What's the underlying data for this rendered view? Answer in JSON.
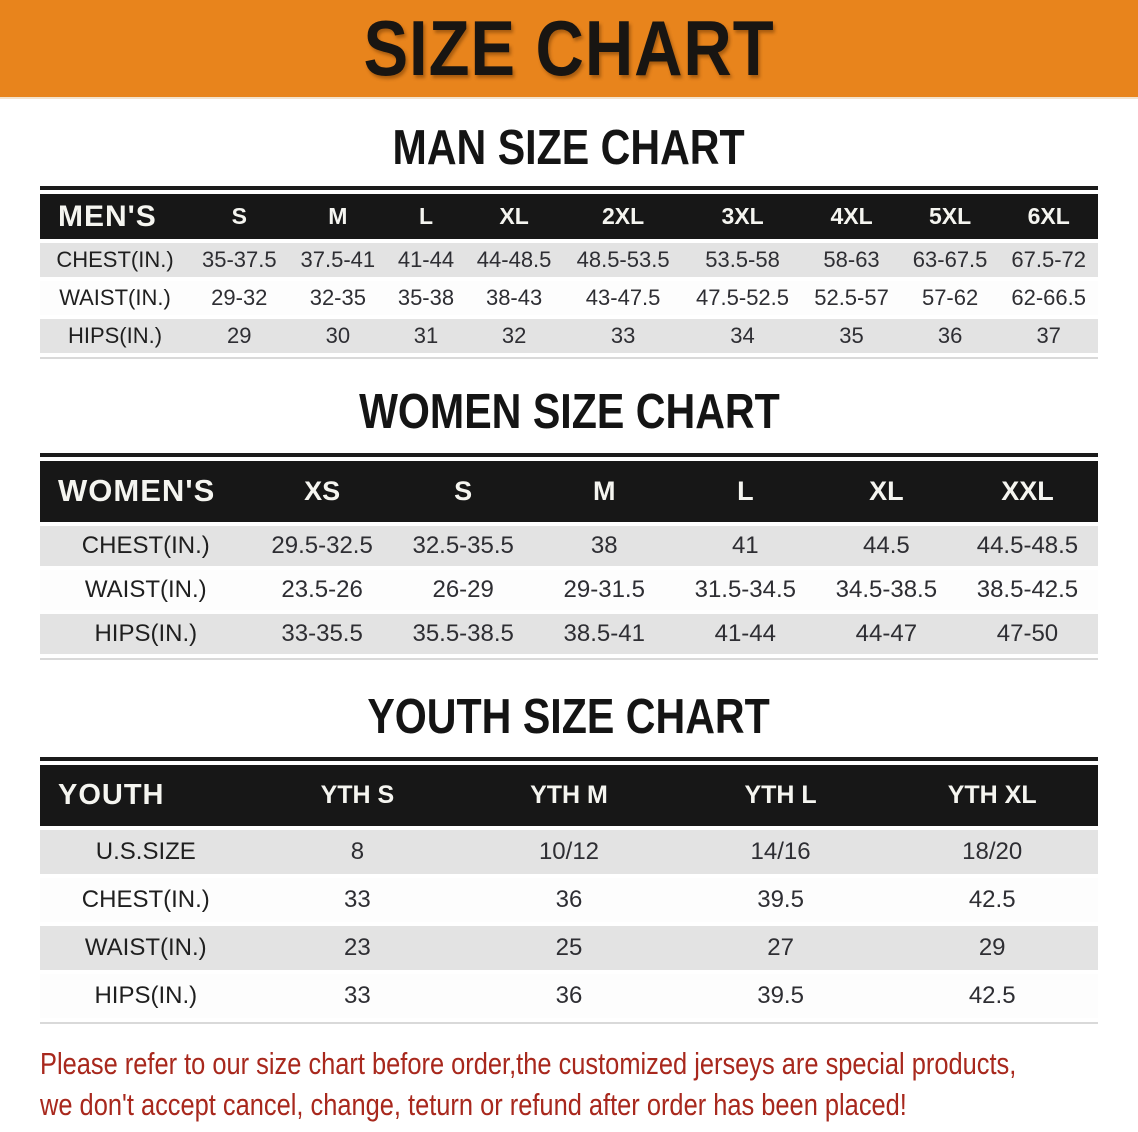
{
  "banner": {
    "title": "SIZE CHART",
    "bg_color": "#e8841c",
    "text_color": "#181512"
  },
  "sections": [
    {
      "heading": "MAN SIZE CHART",
      "table": {
        "header_label": "MEN'S",
        "columns": [
          "S",
          "M",
          "L",
          "XL",
          "2XL",
          "3XL",
          "4XL",
          "5XL",
          "6XL"
        ],
        "rows": [
          {
            "label": "CHEST(IN.)",
            "values": [
              "35-37.5",
              "37.5-41",
              "41-44",
              "44-48.5",
              "48.5-53.5",
              "53.5-58",
              "58-63",
              "63-67.5",
              "67.5-72"
            ]
          },
          {
            "label": "WAIST(IN.)",
            "values": [
              "29-32",
              "32-35",
              "35-38",
              "38-43",
              "43-47.5",
              "47.5-52.5",
              "52.5-57",
              "57-62",
              "62-66.5"
            ]
          },
          {
            "label": "HIPS(IN.)",
            "values": [
              "29",
              "30",
              "31",
              "32",
              "33",
              "34",
              "35",
              "36",
              "37"
            ]
          }
        ]
      }
    },
    {
      "heading": "WOMEN SIZE CHART",
      "table": {
        "header_label": "WOMEN'S",
        "columns": [
          "XS",
          "S",
          "M",
          "L",
          "XL",
          "XXL"
        ],
        "rows": [
          {
            "label": "CHEST(IN.)",
            "values": [
              "29.5-32.5",
              "32.5-35.5",
              "38",
              "41",
              "44.5",
              "44.5-48.5"
            ]
          },
          {
            "label": "WAIST(IN.)",
            "values": [
              "23.5-26",
              "26-29",
              "29-31.5",
              "31.5-34.5",
              "34.5-38.5",
              "38.5-42.5"
            ]
          },
          {
            "label": "HIPS(IN.)",
            "values": [
              "33-35.5",
              "35.5-38.5",
              "38.5-41",
              "41-44",
              "44-47",
              "47-50"
            ]
          }
        ]
      }
    },
    {
      "heading": "YOUTH SIZE CHART",
      "table": {
        "header_label": "YOUTH",
        "columns": [
          "YTH S",
          "YTH M",
          "YTH L",
          "YTH XL"
        ],
        "rows": [
          {
            "label": "U.S.SIZE",
            "values": [
              "8",
              "10/12",
              "14/16",
              "18/20"
            ]
          },
          {
            "label": "CHEST(IN.)",
            "values": [
              "33",
              "36",
              "39.5",
              "42.5"
            ]
          },
          {
            "label": "WAIST(IN.)",
            "values": [
              "23",
              "25",
              "27",
              "29"
            ]
          },
          {
            "label": "HIPS(IN.)",
            "values": [
              "33",
              "36",
              "39.5",
              "42.5"
            ]
          }
        ]
      }
    }
  ],
  "disclaimer": {
    "line1": "Please refer to our size chart before order,the customized jerseys are special products,",
    "line2": "we don't accept cancel, change, teturn or refund after order has been placed!",
    "text_color": "#a8281d"
  },
  "colors": {
    "table_header_bg": "#171717",
    "row_shaded": "#e3e3e3",
    "row_plain": "#fdfdfd"
  }
}
